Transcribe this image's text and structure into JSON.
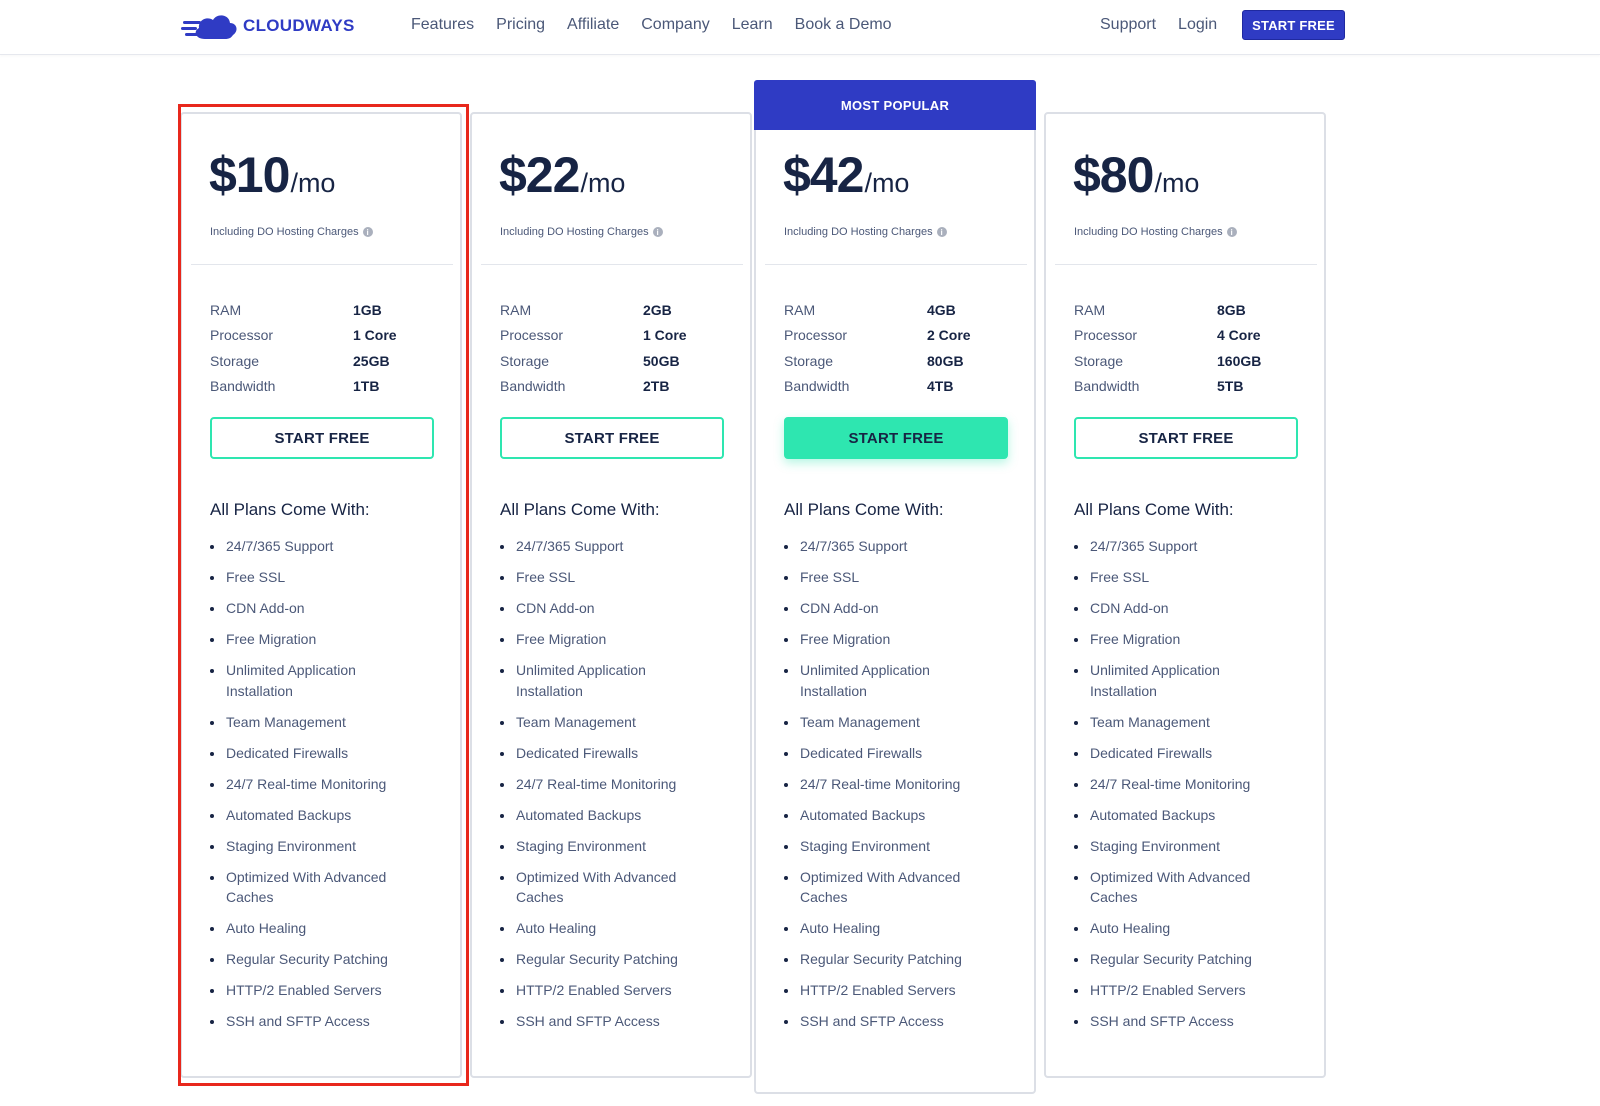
{
  "header": {
    "brand": "CLOUDWAYS",
    "nav": [
      "Features",
      "Pricing",
      "Affiliate",
      "Company",
      "Learn",
      "Book a Demo"
    ],
    "support": "Support",
    "login": "Login",
    "cta": "START FREE"
  },
  "colors": {
    "brand": "#2f3bc4",
    "accent": "#2ee6b0",
    "highlight": "#e8281c"
  },
  "common": {
    "per": "/mo",
    "incl": "Including DO Hosting Charges",
    "spec_labels": [
      "RAM",
      "Processor",
      "Storage",
      "Bandwidth"
    ],
    "button": "START FREE",
    "plans_heading": "All Plans Come With:",
    "features": [
      "24/7/365 Support",
      "Free SSL",
      "CDN Add-on",
      "Free Migration",
      "Unlimited Application Installation",
      "Team Management",
      "Dedicated Firewalls",
      "24/7 Real-time Monitoring",
      "Automated Backups",
      "Staging Environment",
      "Optimized With Advanced Caches",
      "Auto Healing",
      "Regular Security Patching",
      "HTTP/2 Enabled Servers",
      "SSH and SFTP Access"
    ],
    "popular_label": "MOST POPULAR"
  },
  "plans": [
    {
      "price": "$10",
      "ram": "1GB",
      "processor": "1 Core",
      "storage": "25GB",
      "bandwidth": "1TB"
    },
    {
      "price": "$22",
      "ram": "2GB",
      "processor": "1 Core",
      "storage": "50GB",
      "bandwidth": "2TB"
    },
    {
      "price": "$42",
      "ram": "4GB",
      "processor": "2 Core",
      "storage": "80GB",
      "bandwidth": "4TB"
    },
    {
      "price": "$80",
      "ram": "8GB",
      "processor": "4 Core",
      "storage": "160GB",
      "bandwidth": "5TB"
    }
  ]
}
